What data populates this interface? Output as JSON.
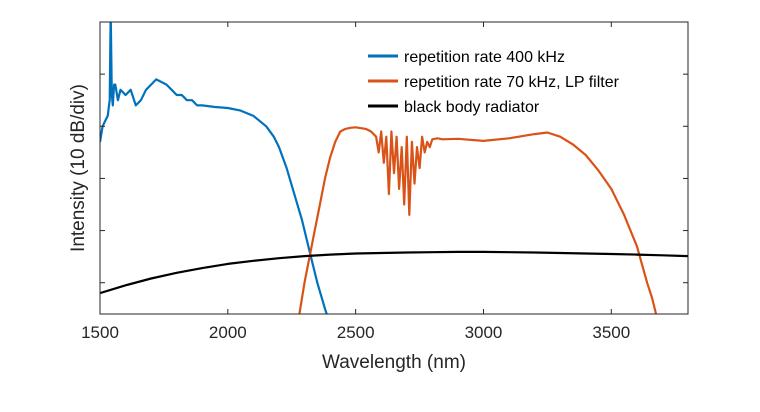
{
  "chart_data": {
    "type": "line",
    "title": "",
    "xlabel": "Wavelength (nm)",
    "ylabel": "Intensity (10 dB/div)",
    "xlim": [
      1500,
      3800
    ],
    "ylim": [
      -56,
      0
    ],
    "x_ticks": [
      1500,
      2000,
      2500,
      3000,
      3500
    ],
    "y_ticks": [
      -50,
      -40,
      -30,
      -20,
      -10,
      0
    ],
    "y_tick_labels_shown": false,
    "grid": false,
    "legend_position": "top-right",
    "series": [
      {
        "name": "repetition rate 400 kHz",
        "color": "#0072BD",
        "x": [
          1500,
          1510,
          1520,
          1530,
          1538,
          1542,
          1546,
          1550,
          1555,
          1560,
          1570,
          1580,
          1600,
          1620,
          1640,
          1660,
          1680,
          1700,
          1720,
          1740,
          1760,
          1780,
          1800,
          1820,
          1840,
          1860,
          1880,
          1900,
          1950,
          2000,
          2050,
          2100,
          2150,
          2180,
          2200,
          2230,
          2260,
          2290,
          2320,
          2350,
          2380,
          2400
        ],
        "y": [
          -23,
          -20,
          -19,
          -18,
          -15,
          2,
          -14,
          -16,
          -12,
          -12,
          -15,
          -13,
          -14,
          -13,
          -16,
          -15,
          -13,
          -12,
          -11,
          -11.5,
          -12,
          -13,
          -14,
          -14,
          -15,
          -15,
          -16,
          -16,
          -16.3,
          -16.5,
          -17,
          -18,
          -20,
          -22,
          -24,
          -28,
          -33,
          -38,
          -44,
          -50,
          -55,
          -58
        ]
      },
      {
        "name": "repetition rate 70 kHz, LP filter",
        "color": "#D95319",
        "x": [
          2260,
          2280,
          2300,
          2320,
          2340,
          2360,
          2380,
          2400,
          2420,
          2440,
          2460,
          2480,
          2500,
          2540,
          2560,
          2580,
          2590,
          2600,
          2610,
          2620,
          2630,
          2640,
          2650,
          2660,
          2670,
          2680,
          2690,
          2700,
          2710,
          2720,
          2730,
          2740,
          2750,
          2760,
          2770,
          2780,
          2790,
          2800,
          2820,
          2840,
          2900,
          3000,
          3100,
          3200,
          3250,
          3300,
          3350,
          3400,
          3450,
          3500,
          3550,
          3600,
          3640,
          3660,
          3680
        ],
        "y": [
          -60,
          -56,
          -50,
          -45,
          -40,
          -35,
          -30,
          -26,
          -23,
          -21,
          -20.5,
          -20.3,
          -20.2,
          -20.5,
          -21,
          -22,
          -25,
          -21,
          -27,
          -22,
          -33,
          -21,
          -29,
          -22,
          -32,
          -24,
          -35,
          -22,
          -37,
          -23,
          -31,
          -24,
          -28,
          -22,
          -25,
          -23,
          -24,
          -22.5,
          -22.3,
          -22.5,
          -22.4,
          -22.8,
          -22.3,
          -21.5,
          -21.2,
          -22,
          -23.5,
          -25.5,
          -28.5,
          -32,
          -37,
          -43,
          -50,
          -53,
          -57
        ]
      },
      {
        "name": "black body radiator",
        "color": "#000000",
        "x": [
          1500,
          1600,
          1700,
          1800,
          1900,
          2000,
          2100,
          2200,
          2300,
          2400,
          2500,
          2600,
          2700,
          2800,
          2900,
          3000,
          3100,
          3200,
          3300,
          3400,
          3500,
          3600,
          3700,
          3800
        ],
        "y": [
          -52,
          -50.5,
          -49.2,
          -48.1,
          -47.2,
          -46.4,
          -45.8,
          -45.3,
          -44.9,
          -44.6,
          -44.4,
          -44.3,
          -44.2,
          -44.15,
          -44.1,
          -44.1,
          -44.15,
          -44.2,
          -44.3,
          -44.4,
          -44.5,
          -44.6,
          -44.75,
          -44.9
        ]
      }
    ]
  }
}
